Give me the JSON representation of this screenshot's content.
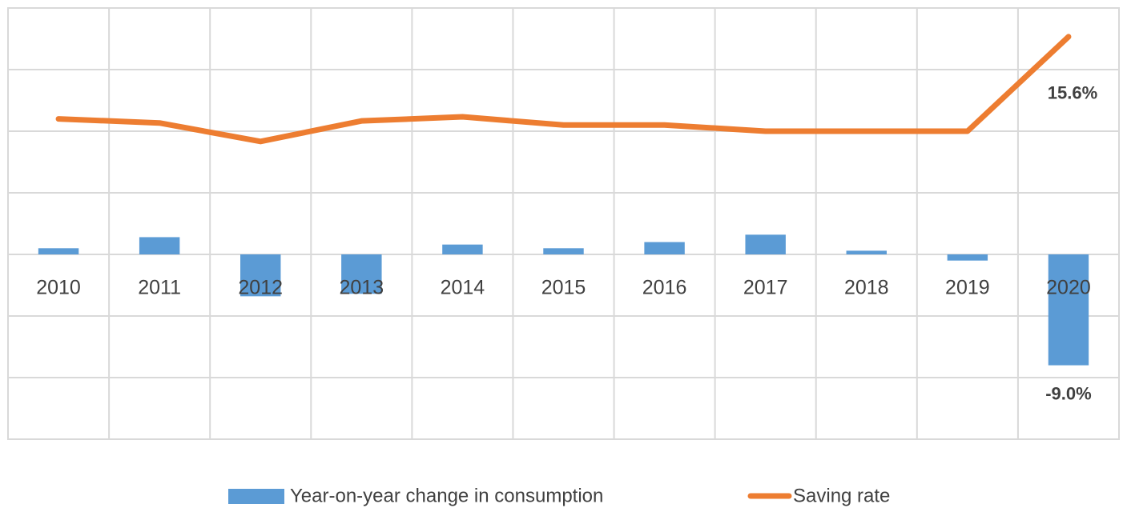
{
  "chart_data": {
    "type": "bar_line",
    "categories": [
      "2010",
      "2011",
      "2012",
      "2013",
      "2014",
      "2015",
      "2016",
      "2017",
      "2018",
      "2019",
      "2020"
    ],
    "series": [
      {
        "name": "Year-on-year change in consumption",
        "type": "bar",
        "color": "#5b9bd5",
        "values": [
          0.5,
          1.4,
          -3.4,
          -3.2,
          0.8,
          0.5,
          1.0,
          1.6,
          0.3,
          -0.5,
          -9.0
        ],
        "value_labels": [
          null,
          null,
          null,
          null,
          null,
          null,
          null,
          null,
          null,
          null,
          "-9.0%"
        ]
      },
      {
        "name": "Saving rate",
        "type": "line",
        "color": "#ed7d31",
        "axis": "y2",
        "values": [
          11.6,
          11.4,
          10.5,
          11.5,
          11.7,
          11.3,
          11.3,
          11.0,
          11.0,
          11.0,
          15.6
        ],
        "value_labels": [
          null,
          null,
          null,
          null,
          null,
          null,
          null,
          null,
          null,
          null,
          "15.6%"
        ]
      }
    ],
    "ylim": [
      -15,
      20
    ],
    "yticks": [
      -15,
      -10,
      -5,
      0,
      5,
      10,
      15,
      20
    ],
    "y2lim": [
      -4,
      17
    ],
    "grid": true,
    "legend": "bottom"
  }
}
